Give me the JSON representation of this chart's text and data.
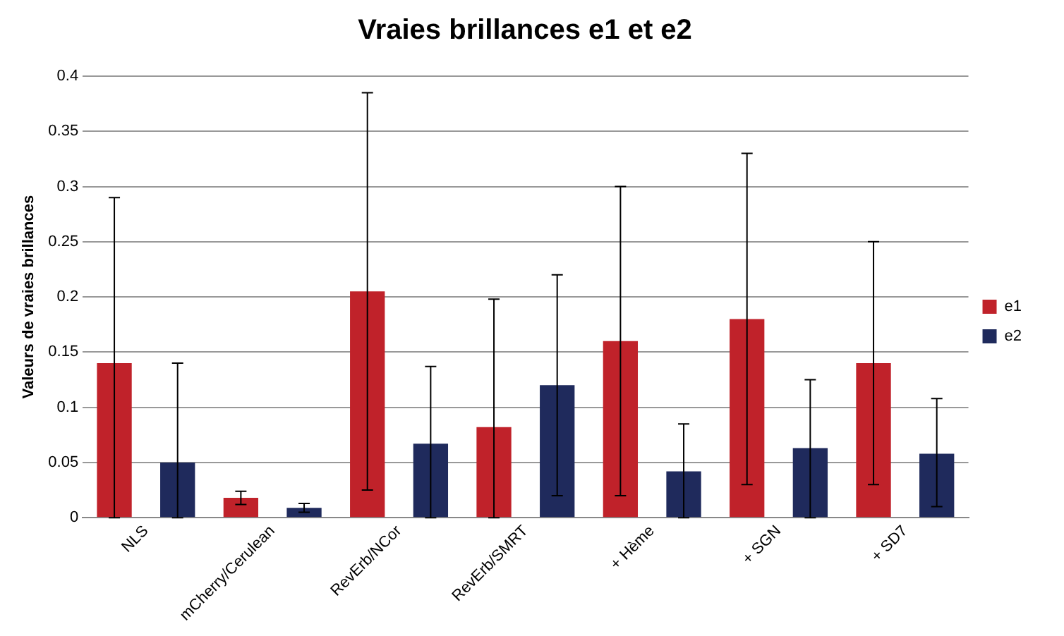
{
  "chart_data": {
    "type": "bar",
    "title": "Vraies brillances e1 et e2",
    "ylabel": "Valeurs de vraies brillances",
    "categories": [
      "NLS",
      "mCherry/Cerulean",
      "RevErb/NCor",
      "RevErb/SMRT",
      "+ Hème",
      "+ SGN",
      "+ SD7"
    ],
    "series": [
      {
        "name": "e1",
        "color": "#c0222a",
        "values": [
          0.14,
          0.018,
          0.205,
          0.082,
          0.16,
          0.18,
          0.14
        ],
        "errors": [
          [
            0,
            0.29
          ],
          [
            0.012,
            0.024
          ],
          [
            0.025,
            0.385
          ],
          [
            0,
            0.198
          ],
          [
            0.02,
            0.3
          ],
          [
            0.03,
            0.33
          ],
          [
            0.03,
            0.25
          ]
        ]
      },
      {
        "name": "e2",
        "color": "#1f2a5c",
        "values": [
          0.05,
          0.009,
          0.067,
          0.12,
          0.042,
          0.063,
          0.058
        ],
        "errors": [
          [
            0,
            0.14
          ],
          [
            0.005,
            0.013
          ],
          [
            0,
            0.137
          ],
          [
            0.02,
            0.22
          ],
          [
            0,
            0.085
          ],
          [
            0,
            0.125
          ],
          [
            0.01,
            0.108
          ]
        ]
      }
    ],
    "ylim": [
      0,
      0.4
    ],
    "yticks": [
      0,
      0.05,
      0.1,
      0.15,
      0.2,
      0.25,
      0.3,
      0.35,
      0.4
    ],
    "grid": "y",
    "legend": "right"
  }
}
